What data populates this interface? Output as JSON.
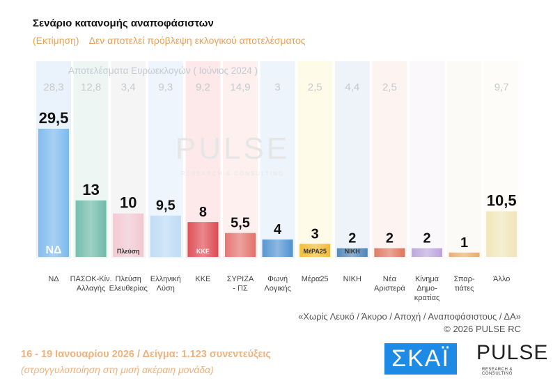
{
  "header": {
    "title": "Σενάριο κατανομής αναποφάσιστων",
    "subtitle_left": "(Εκτίμηση)",
    "subtitle_right": "Δεν αποτελεί πρόβλεψη εκλογικού αποτελέσματος"
  },
  "chart_data": {
    "type": "bar",
    "reference_label": "Αποτελέσματα Ευρωεκλογών  ( Ιούνιος 2024 )",
    "categories": [
      "ΝΔ",
      "ΠΑΣΟΚ-Κιν. Αλλαγής",
      "Πλεύση Ελευθερίας",
      "Ελληνική Λύση",
      "ΚΚΕ",
      "ΣΥΡΙΖΑ - ΠΣ",
      "Φωνή Λογικής",
      "Μέρα25",
      "ΝΙΚΗ",
      "Νέα Αριστερά",
      "Κίνημα Δημο- κρατίας",
      "Σπαρ- τιάτες",
      "Άλλο"
    ],
    "category_lines": [
      [
        "ΝΔ"
      ],
      [
        "ΠΑΣΟΚ-Κίν.",
        "Αλλαγής"
      ],
      [
        "Πλεύση",
        "Ελευθερίας"
      ],
      [
        "Ελληνική",
        "Λύση"
      ],
      [
        "ΚΚΕ"
      ],
      [
        "ΣΥΡΙΖΑ",
        "- ΠΣ"
      ],
      [
        "Φωνή",
        "Λογικής"
      ],
      [
        "Μέρα25"
      ],
      [
        "ΝΙΚΗ"
      ],
      [
        "Νέα",
        "Αριστερά"
      ],
      [
        "Κίνημα",
        "Δημο-",
        "κρατίας"
      ],
      [
        "Σπαρ-",
        "τιάτες"
      ],
      [
        "Άλλο"
      ]
    ],
    "values": [
      29.5,
      13,
      10,
      9.5,
      8,
      5.5,
      4,
      3,
      2,
      2,
      2,
      1,
      10.5
    ],
    "value_labels": [
      "29,5",
      "13",
      "10",
      "9,5",
      "8",
      "5,5",
      "4",
      "3",
      "2",
      "2",
      "2",
      "1",
      "10,5"
    ],
    "reference_values": [
      "28,3",
      "12,8",
      "3,4",
      "9,3",
      "9,2",
      "14,9",
      "3",
      "2,5",
      "4,4",
      "2,5",
      "",
      "",
      "9,7"
    ],
    "logos": [
      "ΝΔ",
      "",
      "Πλεύση",
      "",
      "ΚΚΕ",
      "",
      "",
      "ΜέΡΑ25",
      "ΝΙΚΗ",
      "",
      "",
      "",
      ""
    ],
    "colors": [
      "#6fb3ec",
      "#5fb3a0",
      "#f3c2ce",
      "#b9d9f5",
      "#d9393f",
      "#e0625c",
      "#3d86cc",
      "#f3b21c",
      "#3a78b0",
      "#d8674a",
      "#b39ad8",
      "#e8a35a",
      "#efe2b0"
    ],
    "bg_colors": [
      "#eaf3fc",
      "#eef6f3",
      "#f5f5f5",
      "#eef5fc",
      "#fde8ea",
      "#fdf0ef",
      "#eef4fb",
      "#fffbe9",
      "#eef3f9",
      "#fdf4f1",
      "#faf8fb",
      "#fcfaf6",
      "#fdfcf9"
    ],
    "ylim": [
      0,
      30
    ]
  },
  "footer": {
    "note": "«Χωρίς Λευκό / Άκυρο / Αποχή / Αναποφάσιστους / ΔΑ»",
    "copyright": "©  2026  PULSE RC",
    "dates": "16 - 19 Ιανουαρίου 2026  /  Δείγμα:  1.123 συνεντεύξεις",
    "rounding": "(στρογγυλοποίηση στη μισή ακέραιη μονάδα)"
  },
  "logos": {
    "skai": "ΣΚΑΪ",
    "pulse": "PULSE",
    "pulse_sub": "RESEARCH & CONSULTING",
    "watermark": "PULSE"
  }
}
